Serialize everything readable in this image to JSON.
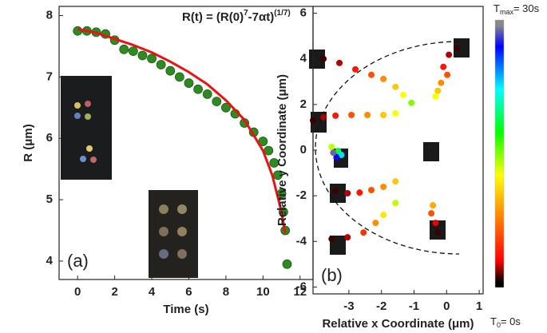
{
  "chart_data": [
    {
      "type": "scatter",
      "panel_label": "(a)",
      "xlabel": "Time (s)",
      "ylabel": "R (μm)",
      "formula_parts": [
        "R(t) = (R(0)",
        "7",
        "-7αt)",
        "(1/7)"
      ],
      "xlim": [
        -1,
        12.7
      ],
      "ylim": [
        3.7,
        8.15
      ],
      "xticks": [
        0,
        2,
        4,
        6,
        8,
        10,
        12
      ],
      "yticks": [
        4,
        5,
        6,
        7,
        8
      ],
      "series": [
        {
          "type": "scatter",
          "color": "#2e8b22",
          "x": [
            0,
            0.5,
            1,
            1.5,
            2,
            2.5,
            3,
            3.5,
            4,
            4.5,
            5,
            5.5,
            6,
            6.5,
            7,
            7.5,
            8,
            8.5,
            9,
            9.5,
            10,
            10.3,
            10.6,
            10.8,
            11,
            11.1,
            11.2,
            11.3
          ],
          "values": [
            7.75,
            7.75,
            7.73,
            7.7,
            7.6,
            7.45,
            7.42,
            7.35,
            7.3,
            7.2,
            7.1,
            7.0,
            6.9,
            6.8,
            6.72,
            6.6,
            6.5,
            6.4,
            6.25,
            6.1,
            5.95,
            5.8,
            5.6,
            5.4,
            5.1,
            4.8,
            4.5,
            3.95
          ]
        },
        {
          "type": "line",
          "color": "#ee1111",
          "x": [
            0,
            1,
            2,
            3,
            4,
            5,
            6,
            7,
            8,
            9,
            10,
            10.5,
            11,
            11.2
          ],
          "values": [
            7.78,
            7.72,
            7.62,
            7.52,
            7.4,
            7.25,
            7.08,
            6.88,
            6.62,
            6.3,
            5.8,
            5.4,
            4.8,
            4.45
          ]
        }
      ]
    },
    {
      "type": "scatter",
      "panel_label": "(b)",
      "xlabel": "Relative x Coordinate (μm)",
      "ylabel": "Relative y Coordinate (μm)",
      "xlim": [
        -4.1,
        1.12
      ],
      "ylim": [
        -6.3,
        6.3
      ],
      "xticks": [
        -3,
        -2,
        -1,
        0,
        1
      ],
      "yticks": [
        -6,
        -4,
        -2,
        0,
        2,
        4,
        6
      ],
      "colormap": [
        "#000000",
        "#ff0000",
        "#ff8000",
        "#ffff00",
        "#00ff00",
        "#00ffff",
        "#0000ff",
        "#888888"
      ],
      "colorbar_lim": [
        0,
        30
      ],
      "colorbar_max": [
        "T",
        "max",
        "= 30s"
      ],
      "colorbar_min": [
        "T",
        "0",
        "= 0s"
      ],
      "series": [
        {
          "x": [
            -3.78,
            -3.29,
            -2.8,
            -2.31,
            -1.94,
            -1.57,
            -1.33,
            -1.08
          ],
          "values": [
            4.0,
            3.82,
            3.54,
            3.3,
            3.12,
            2.77,
            2.42,
            2.07
          ],
          "t": [
            1,
            3,
            5,
            7,
            9,
            11,
            13,
            15
          ]
        },
        {
          "x": [
            0.32,
            0.07,
            -0.1,
            0.02,
            -0.17,
            -0.27,
            -0.34
          ],
          "values": [
            4.46,
            4.18,
            3.65,
            3.3,
            2.95,
            2.6,
            2.35
          ],
          "t": [
            1,
            3,
            5,
            7,
            9,
            11,
            13
          ]
        },
        {
          "x": [
            -4.1,
            -3.78,
            -3.41,
            -2.92,
            -2.43,
            -1.94,
            -1.57
          ],
          "values": [
            1.3,
            1.44,
            1.51,
            1.54,
            1.54,
            1.54,
            1.61
          ],
          "t": [
            1,
            3,
            5,
            7,
            9,
            11,
            13
          ]
        },
        {
          "x": [
            -3.53,
            -3.33,
            -3.23,
            -3.38,
            -3.48
          ],
          "values": [
            0.14,
            -0.04,
            -0.21,
            -0.32,
            -0.11
          ],
          "t": [
            14,
            18,
            22,
            26,
            29
          ]
        },
        {
          "x": [
            -3.41,
            -3.04,
            -2.67,
            -2.31,
            -1.94,
            -1.57
          ],
          "values": [
            -1.79,
            -1.89,
            -1.86,
            -1.75,
            -1.61,
            -1.37
          ],
          "t": [
            1,
            3,
            5,
            7,
            9,
            11
          ]
        },
        {
          "x": [
            -3.53,
            -3.04,
            -2.55,
            -2.18,
            -1.94,
            -1.57
          ],
          "values": [
            -3.89,
            -3.82,
            -3.61,
            -3.19,
            -2.84,
            -2.32
          ],
          "t": [
            1,
            3,
            6,
            9,
            12,
            14
          ]
        },
        {
          "x": [
            -0.27,
            -0.34,
            -0.47,
            -0.42
          ],
          "values": [
            -3.61,
            -3.19,
            -2.77,
            -2.42
          ],
          "t": [
            1,
            4,
            7,
            10
          ]
        }
      ]
    }
  ]
}
